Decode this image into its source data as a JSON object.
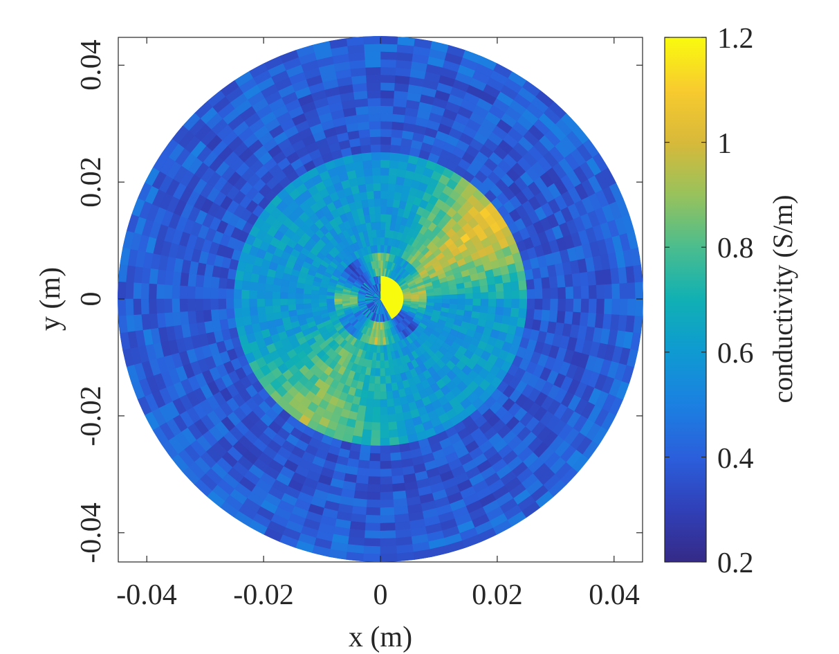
{
  "chart_data": {
    "type": "heatmap",
    "title": "",
    "xlabel": "x (m)",
    "ylabel": "y (m)",
    "xlim": [
      -0.045,
      0.045
    ],
    "ylim": [
      -0.045,
      0.045
    ],
    "x_ticks": [
      -0.04,
      -0.02,
      0,
      0.02,
      0.04
    ],
    "y_ticks": [
      -0.04,
      -0.02,
      0,
      0.02,
      0.04
    ],
    "x_tick_labels": [
      "-0.04",
      "-0.02",
      "0",
      "0.02",
      "0.04"
    ],
    "y_tick_labels": [
      "-0.04",
      "-0.02",
      "0",
      "0.02",
      "0.04"
    ],
    "domain": "disk",
    "disk_radius": 0.045,
    "inner_region_radius": 0.025,
    "colormap": "parula",
    "colorbar": {
      "label": "conductivity (S/m)",
      "limits": [
        0.2,
        1.2
      ],
      "ticks": [
        0.2,
        0.4,
        0.6,
        0.8,
        1,
        1.2
      ],
      "tick_labels": [
        "0.2",
        "0.4",
        "0.6",
        "0.8",
        "1",
        "1.2"
      ]
    },
    "description_values": {
      "outer_ring_typical": 0.38,
      "inner_region_typical": 0.6,
      "hotspot_upper_right": {
        "angle_deg_from": 10,
        "angle_deg_to": 60,
        "value": 1.05
      },
      "hotspot_lower_left": {
        "angle_deg_from": 210,
        "angle_deg_to": 270,
        "value": 0.92
      },
      "center_peak": 1.2
    },
    "grid": false
  }
}
